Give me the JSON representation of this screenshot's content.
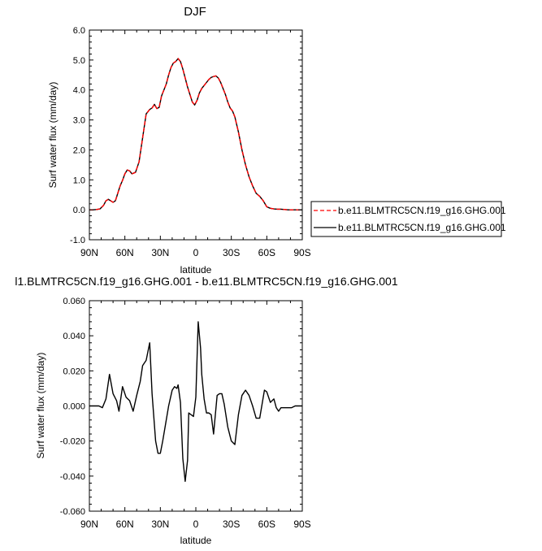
{
  "page": {
    "background": "#ffffff"
  },
  "chart_data": [
    {
      "type": "line",
      "title": "DJF",
      "xlabel": "latitude",
      "ylabel": "Surf water flux (mm/day)",
      "xlim": [
        90,
        -90
      ],
      "ylim": [
        -1.0,
        6.0
      ],
      "xticks": [
        90,
        60,
        30,
        0,
        -30,
        -60,
        -90
      ],
      "xtick_labels": [
        "90N",
        "60N",
        "30N",
        "0",
        "30S",
        "60S",
        "90S"
      ],
      "yticks": [
        -1.0,
        0.0,
        1.0,
        2.0,
        3.0,
        4.0,
        5.0,
        6.0
      ],
      "ytick_labels": [
        "-1.0",
        "0.0",
        "1.0",
        "2.0",
        "3.0",
        "4.0",
        "5.0",
        "6.0"
      ],
      "grid": false,
      "legend_position": "right",
      "series": [
        {
          "name": "b.e11.BLMTRC5CN.f19_g16.GHG.001",
          "color": "#ff0000",
          "dash": "dashed",
          "x": [
            90,
            87,
            84,
            81,
            78,
            76,
            74,
            72,
            70,
            68,
            66,
            64,
            62,
            60,
            58,
            56,
            54,
            51,
            48,
            45,
            42,
            39,
            37,
            35,
            33,
            31,
            29,
            27,
            25,
            23,
            21,
            19,
            17,
            15,
            13,
            11,
            9,
            7,
            5,
            3,
            1,
            -1,
            -3,
            -5,
            -7,
            -9,
            -11,
            -13,
            -15,
            -17,
            -19,
            -21,
            -23,
            -25,
            -27,
            -29,
            -31,
            -33,
            -36,
            -39,
            -42,
            -45,
            -48,
            -51,
            -54,
            -57,
            -60,
            -63,
            -66,
            -69,
            -72,
            -75,
            -78,
            -81,
            -84,
            -87,
            -90
          ],
          "y": [
            0.0,
            0.0,
            0.01,
            0.03,
            0.15,
            0.3,
            0.35,
            0.3,
            0.25,
            0.3,
            0.55,
            0.8,
            0.98,
            1.2,
            1.33,
            1.3,
            1.2,
            1.25,
            1.6,
            2.4,
            3.2,
            3.35,
            3.4,
            3.52,
            3.38,
            3.42,
            3.8,
            4.0,
            4.2,
            4.5,
            4.75,
            4.9,
            4.95,
            5.05,
            4.95,
            4.7,
            4.4,
            4.1,
            3.85,
            3.6,
            3.5,
            3.65,
            3.9,
            4.05,
            4.15,
            4.25,
            4.35,
            4.42,
            4.45,
            4.47,
            4.4,
            4.25,
            4.05,
            3.85,
            3.6,
            3.4,
            3.3,
            3.1,
            2.6,
            2.0,
            1.5,
            1.1,
            0.8,
            0.55,
            0.45,
            0.3,
            0.1,
            0.05,
            0.03,
            0.02,
            0.02,
            0.01,
            0.0,
            0.0,
            0.0,
            0.0,
            0.0
          ]
        },
        {
          "name": "b.e11.BLMTRC5CN.f19_g16.GHG.001",
          "color": "#000000",
          "dash": "solid",
          "x": [
            90,
            87,
            84,
            81,
            78,
            76,
            74,
            72,
            70,
            68,
            66,
            64,
            62,
            60,
            58,
            56,
            54,
            51,
            48,
            45,
            42,
            39,
            37,
            35,
            33,
            31,
            29,
            27,
            25,
            23,
            21,
            19,
            17,
            15,
            13,
            11,
            9,
            7,
            5,
            3,
            1,
            -1,
            -3,
            -5,
            -7,
            -9,
            -11,
            -13,
            -15,
            -17,
            -19,
            -21,
            -23,
            -25,
            -27,
            -29,
            -31,
            -33,
            -36,
            -39,
            -42,
            -45,
            -48,
            -51,
            -54,
            -57,
            -60,
            -63,
            -66,
            -69,
            -72,
            -75,
            -78,
            -81,
            -84,
            -87,
            -90
          ],
          "y": [
            0.0,
            0.0,
            0.01,
            0.03,
            0.15,
            0.3,
            0.35,
            0.3,
            0.25,
            0.3,
            0.55,
            0.8,
            0.98,
            1.2,
            1.33,
            1.3,
            1.2,
            1.25,
            1.6,
            2.4,
            3.2,
            3.35,
            3.4,
            3.52,
            3.38,
            3.42,
            3.8,
            4.0,
            4.2,
            4.5,
            4.75,
            4.9,
            4.95,
            5.05,
            4.95,
            4.7,
            4.4,
            4.1,
            3.85,
            3.6,
            3.5,
            3.65,
            3.9,
            4.05,
            4.15,
            4.25,
            4.35,
            4.42,
            4.45,
            4.47,
            4.4,
            4.25,
            4.05,
            3.85,
            3.6,
            3.4,
            3.3,
            3.1,
            2.6,
            2.0,
            1.5,
            1.1,
            0.8,
            0.55,
            0.45,
            0.3,
            0.1,
            0.05,
            0.03,
            0.02,
            0.02,
            0.01,
            0.0,
            0.0,
            0.0,
            0.0,
            0.0
          ]
        }
      ]
    },
    {
      "type": "line",
      "title": "l1.BLMTRC5CN.f19_g16.GHG.001 - b.e11.BLMTRC5CN.f19_g16.GHG.001",
      "xlabel": "latitude",
      "ylabel": "Surf water flux (mm/day)",
      "xlim": [
        90,
        -90
      ],
      "ylim": [
        -0.06,
        0.06
      ],
      "xticks": [
        90,
        60,
        30,
        0,
        -30,
        -60,
        -90
      ],
      "xtick_labels": [
        "90N",
        "60N",
        "30N",
        "0",
        "30S",
        "60S",
        "90S"
      ],
      "yticks": [
        -0.06,
        -0.04,
        -0.02,
        0.0,
        0.02,
        0.04,
        0.06
      ],
      "ytick_labels": [
        "-0.060",
        "-0.040",
        "-0.020",
        "0.000",
        "0.020",
        "0.040",
        "0.060"
      ],
      "grid": false,
      "series": [
        {
          "color": "#000000",
          "dash": "solid",
          "x": [
            90,
            86,
            82,
            79,
            76,
            73,
            70,
            67,
            65,
            62,
            59,
            56,
            53,
            50,
            47,
            45,
            42,
            39,
            37,
            34,
            32,
            30,
            28,
            26,
            23,
            20,
            18,
            16,
            15,
            13,
            11,
            9,
            7,
            6,
            4,
            2,
            0,
            -2,
            -4,
            -5,
            -7,
            -9,
            -11,
            -13,
            -15,
            -18,
            -20,
            -22,
            -24,
            -27,
            -30,
            -33,
            -36,
            -39,
            -42,
            -45,
            -48,
            -51,
            -54,
            -56,
            -58,
            -60,
            -63,
            -66,
            -68,
            -70,
            -72,
            -75,
            -78,
            -81,
            -84,
            -87,
            -90
          ],
          "y": [
            0.0,
            0.0,
            0.0,
            -0.001,
            0.004,
            0.018,
            0.007,
            0.003,
            -0.003,
            0.011,
            0.005,
            0.003,
            -0.003,
            0.006,
            0.014,
            0.023,
            0.026,
            0.036,
            0.007,
            -0.02,
            -0.027,
            -0.027,
            -0.02,
            -0.012,
            0.0,
            0.009,
            0.011,
            0.01,
            0.012,
            0.002,
            -0.03,
            -0.043,
            -0.031,
            -0.004,
            -0.005,
            -0.006,
            0.005,
            0.048,
            0.033,
            0.018,
            0.004,
            -0.004,
            -0.004,
            -0.005,
            -0.016,
            0.006,
            0.007,
            0.007,
            0.001,
            -0.012,
            -0.02,
            -0.022,
            -0.005,
            0.006,
            0.009,
            0.006,
            0.0,
            -0.007,
            -0.007,
            0.001,
            0.009,
            0.008,
            0.002,
            0.004,
            -0.001,
            -0.003,
            -0.001,
            -0.001,
            -0.001,
            -0.001,
            0.0,
            0.0,
            0.0
          ]
        }
      ]
    }
  ]
}
